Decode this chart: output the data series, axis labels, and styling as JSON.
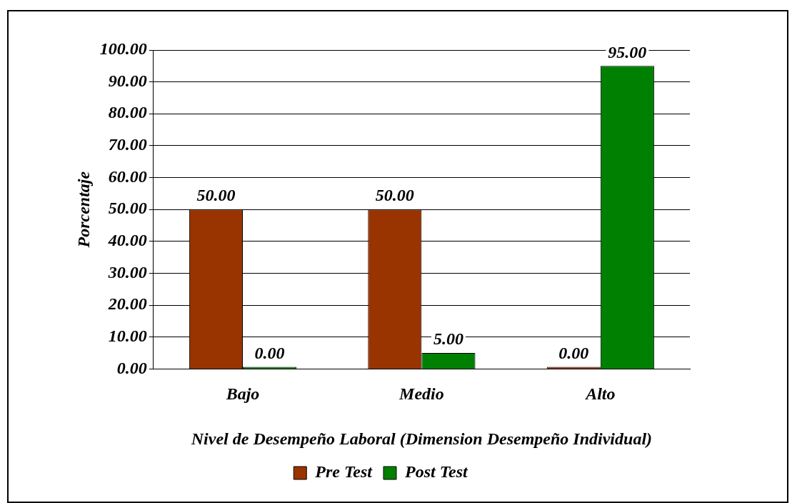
{
  "chart_data": {
    "type": "bar",
    "xlabel": "Nivel de Desempeño Laboral (Dimension Desempeño Individual)",
    "ylabel": "Porcentaje",
    "categories": [
      "Bajo",
      "Medio",
      "Alto"
    ],
    "series": [
      {
        "name": "Pre Test",
        "color": "#993300",
        "values": [
          50,
          50,
          0
        ],
        "value_labels": [
          "50.00",
          "50.00",
          "0.00"
        ]
      },
      {
        "name": "Post Test",
        "color": "#008000",
        "values": [
          0,
          5,
          95
        ],
        "value_labels": [
          "0.00",
          "5.00",
          "95.00"
        ]
      }
    ],
    "ylim": [
      0,
      100
    ],
    "yticks": [
      {
        "value": 0,
        "label": "0.00"
      },
      {
        "value": 10,
        "label": "10.00"
      },
      {
        "value": 20,
        "label": "20.00"
      },
      {
        "value": 30,
        "label": "30.00"
      },
      {
        "value": 40,
        "label": "40.00"
      },
      {
        "value": 50,
        "label": "50.00"
      },
      {
        "value": 60,
        "label": "60.00"
      },
      {
        "value": 70,
        "label": "70.00"
      },
      {
        "value": 80,
        "label": "80.00"
      },
      {
        "value": 90,
        "label": "90.00"
      },
      {
        "value": 100,
        "label": "100.00"
      }
    ],
    "grid": "y",
    "legend": "bottom"
  }
}
